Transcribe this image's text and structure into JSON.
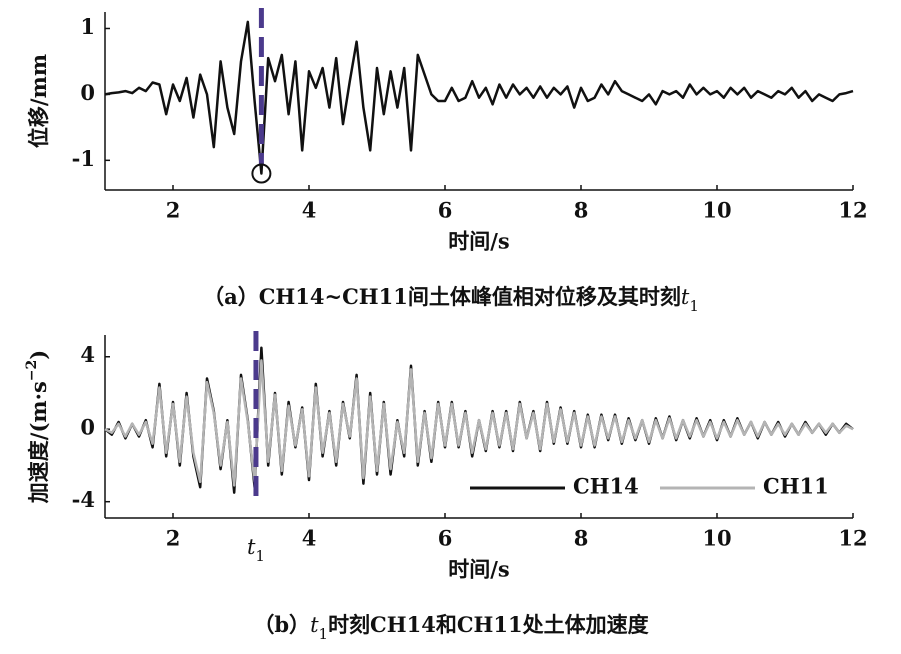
{
  "chart_data": [
    {
      "type": "line",
      "ylabel": [
        {
          "text": "位移/mm"
        }
      ],
      "xlabel": "时间/s",
      "caption": [
        {
          "text": "（a）CH14~CH11间土体峰值相对位移及其时刻"
        },
        {
          "text": "t",
          "style": "italic"
        },
        {
          "text": "1",
          "style": "sub"
        }
      ],
      "xlim": [
        1,
        12
      ],
      "ylim": [
        -1.45,
        1.25
      ],
      "xticks": [
        2,
        4,
        6,
        8,
        10,
        12
      ],
      "yticks": [
        -1,
        0,
        1
      ],
      "x": [
        1.0,
        1.1,
        1.2,
        1.3,
        1.4,
        1.5,
        1.6,
        1.7,
        1.8,
        1.9,
        2.0,
        2.1,
        2.2,
        2.3,
        2.4,
        2.5,
        2.6,
        2.7,
        2.8,
        2.9,
        3.0,
        3.1,
        3.2,
        3.3,
        3.4,
        3.5,
        3.6,
        3.7,
        3.8,
        3.9,
        4.0,
        4.1,
        4.2,
        4.3,
        4.4,
        4.5,
        4.6,
        4.7,
        4.8,
        4.9,
        5.0,
        5.1,
        5.2,
        5.3,
        5.4,
        5.5,
        5.6,
        5.7,
        5.8,
        5.9,
        6.0,
        6.1,
        6.2,
        6.3,
        6.4,
        6.5,
        6.6,
        6.7,
        6.8,
        6.9,
        7.0,
        7.1,
        7.2,
        7.3,
        7.4,
        7.5,
        7.6,
        7.7,
        7.8,
        7.9,
        8.0,
        8.1,
        8.2,
        8.3,
        8.4,
        8.5,
        8.6,
        8.7,
        8.8,
        8.9,
        9.0,
        9.1,
        9.2,
        9.3,
        9.4,
        9.5,
        9.6,
        9.7,
        9.8,
        9.9,
        10.0,
        10.1,
        10.2,
        10.3,
        10.4,
        10.5,
        10.6,
        10.7,
        10.8,
        10.9,
        11.0,
        11.1,
        11.2,
        11.3,
        11.4,
        11.5,
        11.6,
        11.7,
        11.8,
        11.9,
        12.0
      ],
      "series": [
        {
          "color": "#111111",
          "values": [
            0,
            0.02,
            0.03,
            0.05,
            0.02,
            0.1,
            0.05,
            0.18,
            0.15,
            -0.3,
            0.15,
            -0.1,
            0.25,
            -0.35,
            0.3,
            0,
            -0.8,
            0.5,
            -0.2,
            -0.6,
            0.5,
            1.1,
            -0.1,
            -1.2,
            0.55,
            0.2,
            0.6,
            -0.3,
            0.5,
            -0.85,
            0.35,
            0.1,
            0.4,
            -0.2,
            0.55,
            -0.45,
            0.2,
            0.8,
            -0.2,
            -0.85,
            0.4,
            -0.3,
            0.35,
            -0.2,
            0.4,
            -0.85,
            0.6,
            0.3,
            0,
            -0.1,
            -0.1,
            0.1,
            -0.1,
            -0.05,
            0.2,
            -0.05,
            0.1,
            -0.15,
            0.15,
            -0.05,
            0.15,
            0,
            0.1,
            -0.05,
            0.12,
            -0.05,
            0.1,
            0,
            0.12,
            -0.2,
            0.1,
            -0.1,
            -0.05,
            0.15,
            0,
            0.2,
            0.05,
            0,
            -0.05,
            -0.1,
            0,
            -0.15,
            0.05,
            0,
            0.05,
            -0.05,
            0.15,
            0,
            0.1,
            0,
            0.05,
            -0.05,
            0.1,
            0,
            0.1,
            -0.05,
            0.05,
            0,
            -0.05,
            0.05,
            0,
            0.1,
            -0.05,
            0.05,
            -0.1,
            0,
            -0.05,
            -0.1,
            0,
            0.02,
            0.05
          ]
        }
      ],
      "vline": {
        "x": 3.3,
        "color": "#4b3a8c"
      },
      "marker": {
        "x": 3.3,
        "y": -1.2
      }
    },
    {
      "type": "line",
      "ylabel": [
        {
          "text": "加速度/(m·s"
        },
        {
          "text": "−2",
          "style": "sup"
        },
        {
          "text": ")"
        }
      ],
      "xlabel": "时间/s",
      "caption": [
        {
          "text": "（b）"
        },
        {
          "text": "t",
          "style": "italic"
        },
        {
          "text": "1",
          "style": "sub"
        },
        {
          "text": "时刻CH14和CH11处土体加速度"
        }
      ],
      "xlim": [
        1,
        12
      ],
      "ylim": [
        -4.9,
        5.2
      ],
      "xticks": [
        2,
        4,
        6,
        8,
        10,
        12
      ],
      "yticks": [
        -4,
        0,
        4
      ],
      "legend": "lower right",
      "x": [
        1.0,
        1.1,
        1.2,
        1.3,
        1.4,
        1.5,
        1.6,
        1.7,
        1.8,
        1.9,
        2.0,
        2.1,
        2.2,
        2.3,
        2.4,
        2.5,
        2.6,
        2.7,
        2.8,
        2.9,
        3.0,
        3.1,
        3.2,
        3.3,
        3.4,
        3.5,
        3.6,
        3.7,
        3.8,
        3.9,
        4.0,
        4.1,
        4.2,
        4.3,
        4.4,
        4.5,
        4.6,
        4.7,
        4.8,
        4.9,
        5.0,
        5.1,
        5.2,
        5.3,
        5.4,
        5.5,
        5.6,
        5.7,
        5.8,
        5.9,
        6.0,
        6.1,
        6.2,
        6.3,
        6.4,
        6.5,
        6.6,
        6.7,
        6.8,
        6.9,
        7.0,
        7.1,
        7.2,
        7.3,
        7.4,
        7.5,
        7.6,
        7.7,
        7.8,
        7.9,
        8.0,
        8.1,
        8.2,
        8.3,
        8.4,
        8.5,
        8.6,
        8.7,
        8.8,
        8.9,
        9.0,
        9.1,
        9.2,
        9.3,
        9.4,
        9.5,
        9.6,
        9.7,
        9.8,
        9.9,
        10.0,
        10.1,
        10.2,
        10.3,
        10.4,
        10.5,
        10.6,
        10.7,
        10.8,
        10.9,
        11.0,
        11.1,
        11.2,
        11.3,
        11.4,
        11.5,
        11.6,
        11.7,
        11.8,
        11.9,
        12.0
      ],
      "series": [
        {
          "name": "CH14",
          "color": "#111111",
          "values": [
            0,
            -0.3,
            0.4,
            -0.5,
            0.3,
            -0.4,
            0.5,
            -1.0,
            2.5,
            -1.5,
            1.5,
            -2.0,
            2.0,
            -1.5,
            -3.2,
            2.8,
            1.0,
            -2.2,
            0.5,
            -3.5,
            3.0,
            0.5,
            -3.2,
            4.5,
            -2.0,
            2.0,
            -2.5,
            1.5,
            -1.0,
            1.2,
            -2.8,
            2.5,
            -1.5,
            1.0,
            -2.0,
            1.5,
            -0.5,
            3.0,
            -3.0,
            2.0,
            -2.5,
            1.5,
            -2.5,
            0.5,
            -1.5,
            3.5,
            -2.0,
            1.0,
            -1.8,
            1.5,
            -1.0,
            1.5,
            -1.0,
            1.0,
            -1.5,
            0.5,
            -1.2,
            1.0,
            -1.0,
            1.0,
            -1.2,
            1.5,
            -0.5,
            1.0,
            -1.2,
            1.5,
            -0.8,
            1.2,
            -0.8,
            1.0,
            -1.0,
            0.8,
            -1.0,
            0.8,
            -0.6,
            0.8,
            -0.8,
            0.6,
            -0.6,
            0.5,
            -0.8,
            0.6,
            -0.5,
            0.7,
            -0.6,
            0.5,
            -0.5,
            0.6,
            -0.4,
            0.5,
            -0.6,
            0.5,
            -0.4,
            0.6,
            -0.3,
            0.4,
            -0.5,
            0.4,
            -0.3,
            0.4,
            -0.4,
            0.3,
            -0.3,
            0.4,
            -0.2,
            0.3,
            -0.3,
            0.3,
            -0.2,
            0.3,
            0
          ]
        },
        {
          "name": "CH11",
          "color": "#b4b4b4",
          "values": [
            0,
            -0.2,
            0.3,
            -0.4,
            0.3,
            -0.3,
            0.4,
            -0.8,
            2.3,
            -1.3,
            1.4,
            -1.8,
            1.8,
            -1.3,
            -2.9,
            2.6,
            0.9,
            -2.0,
            0.4,
            -3.1,
            2.8,
            0.4,
            -2.9,
            3.8,
            -1.8,
            1.9,
            -2.3,
            1.3,
            -0.9,
            1.1,
            -2.6,
            2.3,
            -1.3,
            0.9,
            -1.8,
            1.4,
            -0.4,
            2.8,
            -2.7,
            1.8,
            -2.3,
            1.4,
            -2.2,
            0.4,
            -1.3,
            3.3,
            -1.8,
            0.9,
            -1.6,
            1.4,
            -0.9,
            1.4,
            -0.9,
            0.9,
            -1.3,
            0.5,
            -1.1,
            0.9,
            -0.9,
            0.9,
            -1.1,
            1.4,
            -0.5,
            0.9,
            -1.1,
            1.4,
            -0.7,
            1.1,
            -0.7,
            0.9,
            -0.9,
            0.7,
            -0.9,
            0.7,
            -0.5,
            0.7,
            -0.7,
            0.5,
            -0.5,
            0.5,
            -0.7,
            0.5,
            -0.5,
            0.6,
            -0.5,
            0.5,
            -0.4,
            0.5,
            -0.4,
            0.4,
            -0.5,
            0.4,
            -0.4,
            0.5,
            -0.3,
            0.4,
            -0.4,
            0.4,
            -0.3,
            0.3,
            -0.3,
            0.3,
            -0.3,
            0.3,
            -0.2,
            0.3,
            -0.2,
            0.3,
            -0.2,
            0.2,
            0
          ]
        }
      ],
      "vline": {
        "x": 3.22,
        "color": "#4b3a8c"
      },
      "xtick_extra": [
        {
          "value": 3.22,
          "label": [
            {
              "text": "t",
              "style": "italic"
            },
            {
              "text": "1",
              "style": "sub"
            }
          ]
        }
      ]
    }
  ]
}
